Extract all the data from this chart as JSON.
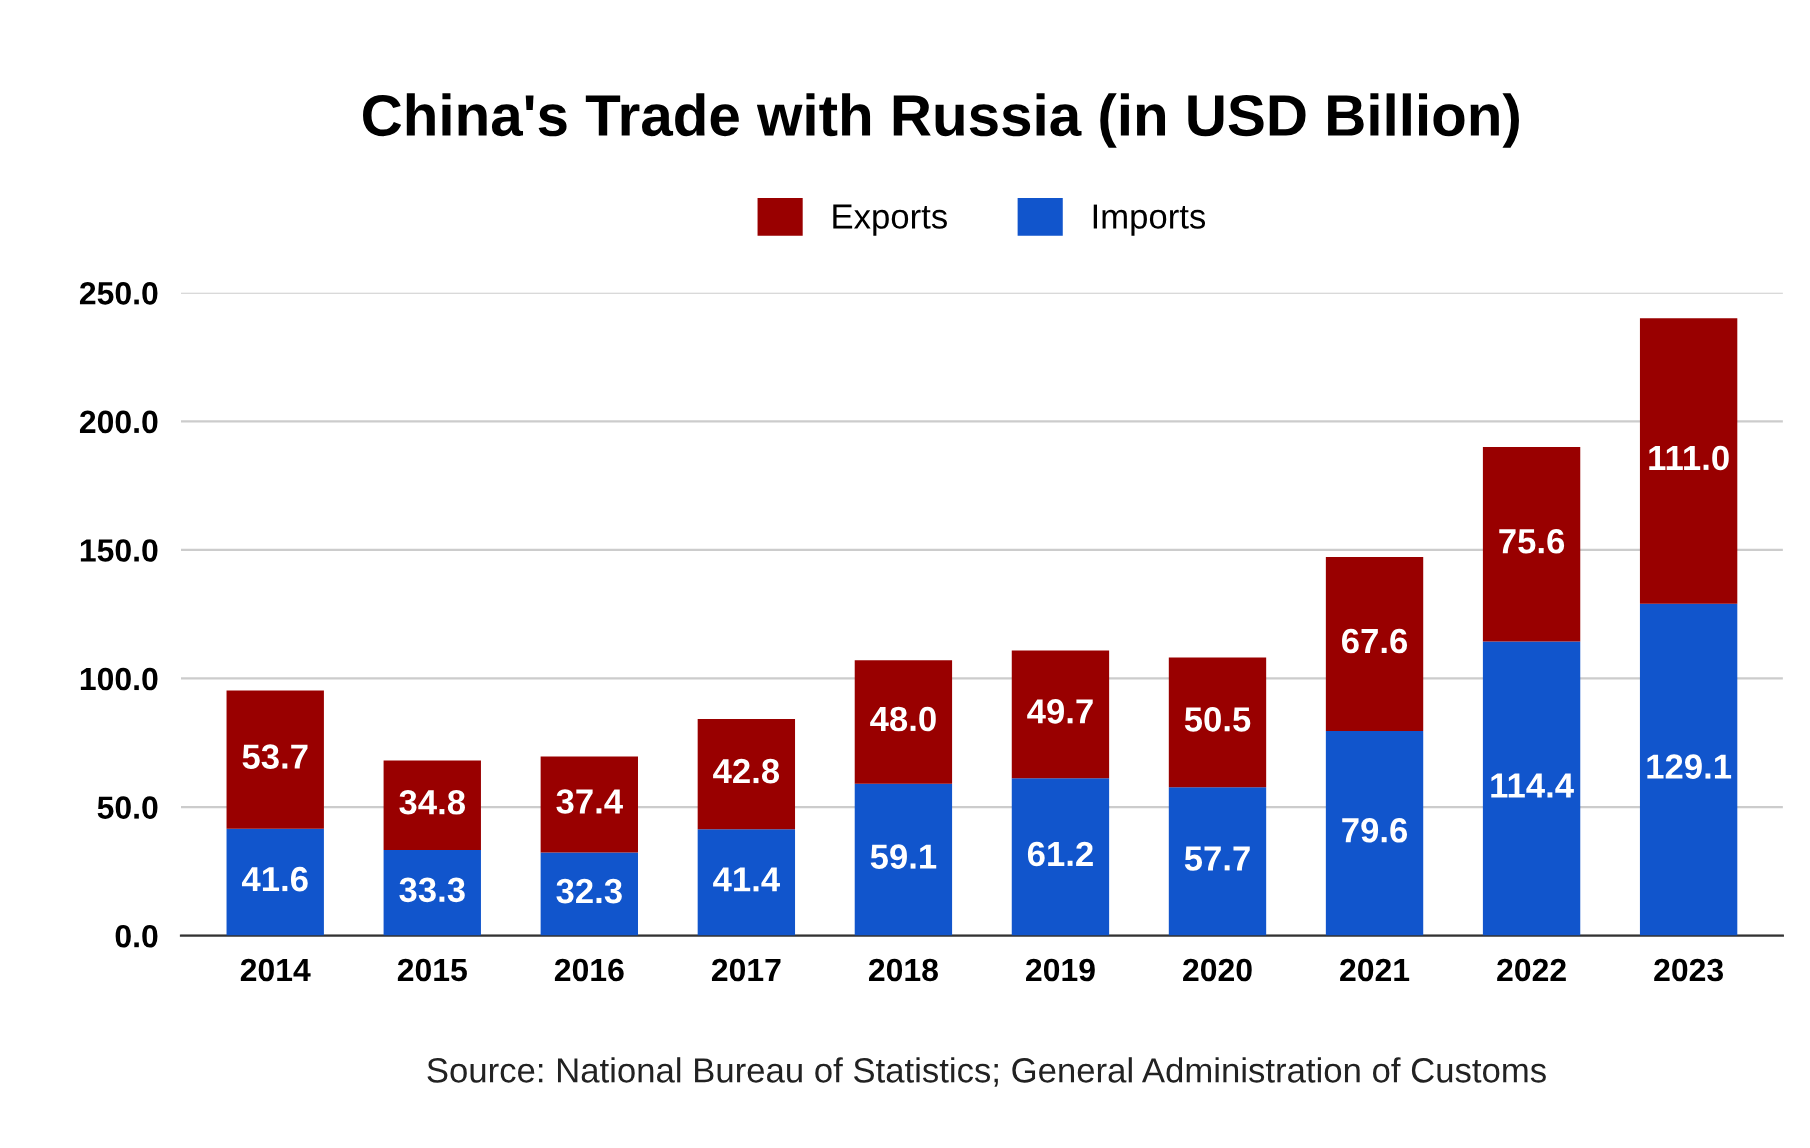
{
  "chart_data": {
    "type": "bar",
    "title": "China's Trade with Russia (in USD Billion)",
    "stacked": true,
    "categories": [
      "2014",
      "2015",
      "2016",
      "2017",
      "2018",
      "2019",
      "2020",
      "2021",
      "2022",
      "2023"
    ],
    "series": [
      {
        "name": "Imports",
        "color": "#1155cc",
        "values": [
          41.6,
          33.3,
          32.3,
          41.4,
          59.1,
          61.2,
          57.7,
          79.6,
          114.4,
          129.1
        ],
        "value_labels": [
          "41.6",
          "33.3",
          "32.3",
          "41.4",
          "59.1",
          "61.2",
          "57.7",
          "79.6",
          "114.4",
          "129.1"
        ]
      },
      {
        "name": "Exports",
        "color": "#990000",
        "values": [
          53.7,
          34.8,
          37.4,
          42.8,
          48.0,
          49.7,
          50.5,
          67.6,
          75.6,
          111.0
        ],
        "value_labels": [
          "53.7",
          "34.8",
          "37.4",
          "42.8",
          "48.0",
          "49.7",
          "50.5",
          "67.6",
          "75.6",
          "111.0"
        ]
      }
    ],
    "ylim": [
      0,
      250
    ],
    "yticks": [
      {
        "value": 0,
        "label": "0.0"
      },
      {
        "value": 50,
        "label": "50.0"
      },
      {
        "value": 100,
        "label": "100.0"
      },
      {
        "value": 150,
        "label": "150.0"
      },
      {
        "value": 200,
        "label": "200.0"
      },
      {
        "value": 250,
        "label": "250.0"
      }
    ],
    "grid": "y",
    "legend": "top",
    "annotations": [
      "Source: National Bureau of Statistics; General Administration of Customs"
    ]
  }
}
